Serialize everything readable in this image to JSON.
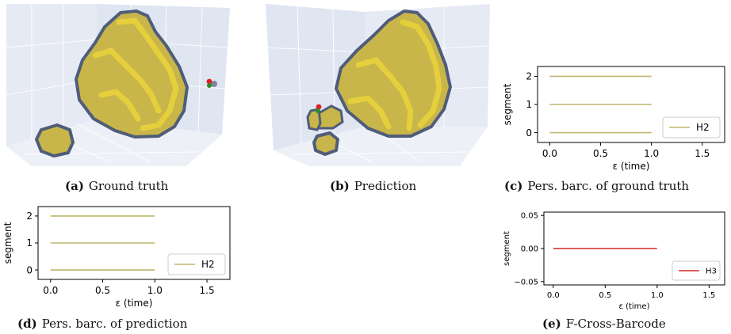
{
  "captions": {
    "a": {
      "tag": "(a)",
      "text": "Ground truth"
    },
    "b": {
      "tag": "(b)",
      "text": "Prediction"
    },
    "c": {
      "tag": "(c)",
      "text": "Pers. barc. of ground truth"
    },
    "d": {
      "tag": "(d)",
      "text": "Pers. barc. of prediction"
    },
    "e": {
      "tag": "(e)",
      "text": "F-Cross-Barcode"
    }
  },
  "colors": {
    "pane": "#e8ecf5",
    "grid": "#ffffff",
    "blob_fill": "#c9b64a",
    "blob_highlight": "#ead43a",
    "blob_edge": "#4f5d7a",
    "h2_line": "#bdb76b",
    "h3_line": "#d62728",
    "dot_red": "#e02020",
    "dot_green": "#2a8a2a"
  },
  "chart_data": [
    {
      "id": "c",
      "type": "bar",
      "orientation": "horizontal",
      "xlabel": "ε (time)",
      "ylabel": "segment",
      "xlim": [
        -0.12,
        1.72
      ],
      "ylim": [
        -0.35,
        2.35
      ],
      "xticks": [
        "0.0",
        "0.5",
        "1.0",
        "1.5"
      ],
      "xtick_values": [
        0.0,
        0.5,
        1.0,
        1.5
      ],
      "yticks": [
        "0",
        "1",
        "2"
      ],
      "ytick_values": [
        0,
        1,
        2
      ],
      "legend_position": "lower right",
      "series": [
        {
          "name": "H2",
          "color": "#bdb76b",
          "bars": [
            {
              "segment": 0,
              "start": 0.0,
              "end": 1.0
            },
            {
              "segment": 1,
              "start": 0.0,
              "end": 1.0
            },
            {
              "segment": 2,
              "start": 0.0,
              "end": 1.0
            }
          ]
        }
      ]
    },
    {
      "id": "d",
      "type": "bar",
      "orientation": "horizontal",
      "xlabel": "ε (time)",
      "ylabel": "segment",
      "xlim": [
        -0.12,
        1.72
      ],
      "ylim": [
        -0.35,
        2.35
      ],
      "xticks": [
        "0.0",
        "0.5",
        "1.0",
        "1.5"
      ],
      "xtick_values": [
        0.0,
        0.5,
        1.0,
        1.5
      ],
      "yticks": [
        "0",
        "1",
        "2"
      ],
      "ytick_values": [
        0,
        1,
        2
      ],
      "legend_position": "lower right",
      "series": [
        {
          "name": "H2",
          "color": "#bdb76b",
          "bars": [
            {
              "segment": 0,
              "start": 0.0,
              "end": 1.0
            },
            {
              "segment": 1,
              "start": 0.0,
              "end": 1.0
            },
            {
              "segment": 2,
              "start": 0.0,
              "end": 1.0
            }
          ]
        }
      ]
    },
    {
      "id": "e",
      "type": "bar",
      "orientation": "horizontal",
      "xlabel": "ε (time)",
      "ylabel": "segment",
      "xlim": [
        -0.09,
        1.65
      ],
      "ylim": [
        -0.055,
        0.055
      ],
      "xticks": [
        "0.0",
        "0.5",
        "1.0",
        "1.5"
      ],
      "xtick_values": [
        0.0,
        0.5,
        1.0,
        1.5
      ],
      "yticks": [
        "0.05",
        "0.00",
        "−0.05"
      ],
      "ytick_values": [
        0.05,
        0.0,
        -0.05
      ],
      "legend_position": "lower right",
      "series": [
        {
          "name": "H3",
          "color": "#d62728",
          "bars": [
            {
              "segment": 0,
              "start": 0.0,
              "end": 1.0
            }
          ]
        }
      ]
    }
  ]
}
